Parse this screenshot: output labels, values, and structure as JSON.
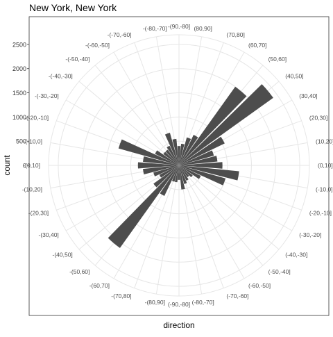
{
  "chart_data": {
    "type": "bar",
    "coord": "polar",
    "title": "New York, New York",
    "xlabel": "direction",
    "ylabel": "count",
    "ylim": [
      0,
      2700
    ],
    "y_ticks": [
      0,
      500,
      1000,
      1500,
      2000,
      2500
    ],
    "grid": true,
    "bar_color": "#4d4d4d",
    "grid_color": "#e6e6e6",
    "categories": [
      "(0,10]",
      "(10,20]",
      "(20,30]",
      "(30,40]",
      "(40,50]",
      "(50,60]",
      "(60,70]",
      "(70,80]",
      "(80,90]",
      "-(90,-80]",
      "-(-80,-70]",
      "-(-70,-60]",
      "-(-60,-50]",
      "-(-50,-40]",
      "-(-40,-30]",
      "-(-30,-20]",
      "-(-20,-10]",
      "-(-10,0]",
      "-(0,10]",
      "-(10,20]",
      "-(20,30]",
      "-(30,40]",
      "-(40,50]",
      "-(50,60]",
      "-(60,70]",
      "-(70,80]",
      "-(80,90]",
      "(-90,-80]",
      "(-80,-70]",
      "(-70,-60]",
      "(-60,-50]",
      "(-50,-40]",
      "(-40,-30]",
      "(-30,-20]",
      "(-20,-10]",
      "(-10,0]"
    ],
    "values": [
      900,
      800,
      750,
      1050,
      2400,
      2000,
      700,
      600,
      450,
      400,
      550,
      700,
      450,
      400,
      400,
      550,
      1300,
      750,
      850,
      750,
      550,
      450,
      650,
      2100,
      700,
      350,
      350,
      300,
      500,
      400,
      350,
      300,
      350,
      500,
      1000,
      1250
    ]
  }
}
